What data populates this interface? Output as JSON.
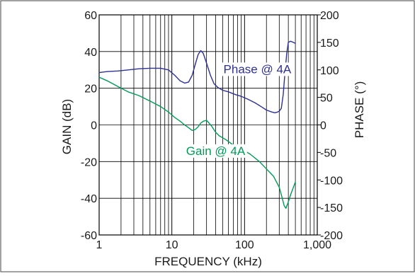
{
  "chart_data": {
    "type": "line",
    "xscale": "log",
    "xlim": [
      1,
      1000
    ],
    "ylim_left": [
      -60,
      60
    ],
    "ylim_right": [
      -200,
      200
    ],
    "xlabel": "FREQUENCY (kHz)",
    "ylabel_left": "GAIN (dB)",
    "ylabel_right": "PHASE (°)",
    "grid": true,
    "x_ticks": [
      {
        "value": 1,
        "label": "1"
      },
      {
        "value": 10,
        "label": "10"
      },
      {
        "value": 100,
        "label": "100"
      },
      {
        "value": 1000,
        "label": "1,000"
      }
    ],
    "y_ticks_left": [
      "60",
      "40",
      "20",
      "0",
      "-20",
      "-40",
      "-60"
    ],
    "y_ticks_right": [
      "200",
      "150",
      "100",
      "50",
      "0",
      "-50",
      "-100",
      "-150",
      "-200"
    ],
    "series": [
      {
        "name": "Phase @ 4A",
        "axis": "right",
        "color": "#2e3192",
        "x": [
          1,
          1.3,
          1.8,
          2.5,
          3.5,
          5,
          7,
          9,
          11,
          13,
          15,
          17,
          19,
          21,
          23,
          25,
          27,
          30,
          34,
          38,
          43,
          50,
          60,
          75,
          90,
          110,
          140,
          170,
          200,
          230,
          260,
          280,
          300,
          320,
          340,
          360,
          380,
          400,
          430,
          470,
          500
        ],
        "y": [
          95,
          97,
          98,
          100,
          102,
          103,
          103,
          100,
          90,
          80,
          76,
          78,
          90,
          110,
          128,
          135,
          130,
          112,
          90,
          75,
          68,
          63,
          60,
          55,
          52,
          47,
          40,
          33,
          27,
          24,
          22,
          23,
          25,
          30,
          55,
          95,
          130,
          150,
          152,
          150,
          148
        ]
      },
      {
        "name": "Gain @ 4A",
        "axis": "left",
        "color": "#009a57",
        "x": [
          1,
          1.3,
          1.8,
          2.5,
          3.5,
          5,
          7,
          9,
          11,
          13,
          15,
          17,
          19,
          21,
          23,
          25,
          27,
          30,
          35,
          40,
          45,
          55,
          70,
          90,
          120,
          160,
          200,
          250,
          300,
          330,
          350,
          370,
          400,
          430,
          470,
          500
        ],
        "y": [
          26,
          24,
          21,
          18,
          16,
          13,
          10,
          7,
          4,
          2,
          0,
          -1.5,
          -3,
          -2.5,
          -1,
          1,
          2,
          2.5,
          -0.5,
          -4,
          -6,
          -8,
          -11,
          -13,
          -16,
          -20,
          -24,
          -28,
          -34,
          -40,
          -44,
          -45.5,
          -42,
          -38,
          -34,
          -31
        ]
      }
    ],
    "annotations": [
      {
        "series": 0,
        "text": "Phase @ 4A"
      },
      {
        "series": 1,
        "text": "Gain @ 4A"
      }
    ]
  }
}
